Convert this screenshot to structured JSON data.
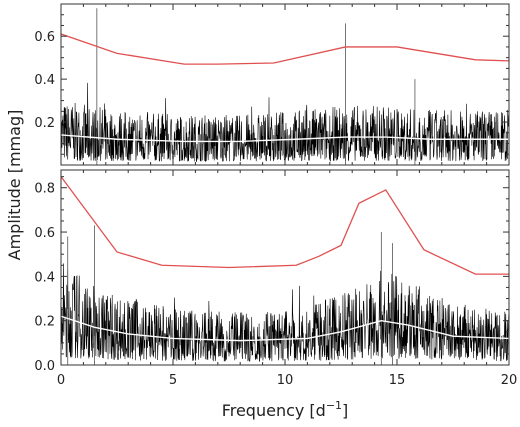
{
  "chart_data": [
    {
      "panel": "top",
      "type": "line",
      "xlim": [
        0,
        20
      ],
      "ylim": [
        0,
        0.75
      ],
      "yticks": [
        {
          "value": 0.2,
          "label": "0.2"
        },
        {
          "value": 0.4,
          "label": "0.4"
        },
        {
          "value": 0.6,
          "label": "0.6"
        }
      ],
      "series": [
        {
          "role": "spectrum",
          "color": "#000000",
          "noise_level": 0.1,
          "spikes": [
            [
              1.6,
              0.73
            ],
            [
              12.7,
              0.66
            ],
            [
              15.8,
              0.4
            ]
          ]
        },
        {
          "role": "smoothed-noise",
          "color": "#ffffff",
          "points": [
            [
              0,
              0.14
            ],
            [
              2.5,
              0.12
            ],
            [
              5.5,
              0.11
            ],
            [
              8,
              0.11
            ],
            [
              10.5,
              0.12
            ],
            [
              12.7,
              0.13
            ],
            [
              14.5,
              0.13
            ],
            [
              16.5,
              0.12
            ],
            [
              18.5,
              0.12
            ],
            [
              20,
              0.12
            ]
          ]
        },
        {
          "role": "threshold",
          "color": "#e05050",
          "points": [
            [
              0,
              0.61
            ],
            [
              2.5,
              0.52
            ],
            [
              5.5,
              0.47
            ],
            [
              7,
              0.47
            ],
            [
              9.5,
              0.475
            ],
            [
              12.7,
              0.55
            ],
            [
              15,
              0.55
            ],
            [
              18.5,
              0.49
            ],
            [
              20,
              0.485
            ]
          ]
        }
      ]
    },
    {
      "panel": "bottom",
      "type": "line",
      "xlim": [
        0,
        20
      ],
      "ylim": [
        0,
        0.88
      ],
      "yticks": [
        {
          "value": 0.0,
          "label": "0.0"
        },
        {
          "value": 0.2,
          "label": "0.2"
        },
        {
          "value": 0.4,
          "label": "0.4"
        },
        {
          "value": 0.6,
          "label": "0.6"
        },
        {
          "value": 0.8,
          "label": "0.8"
        }
      ],
      "series": [
        {
          "role": "spectrum",
          "color": "#000000",
          "noise_level": 0.1,
          "spikes": [
            [
              0.3,
              0.58
            ],
            [
              1.5,
              0.63
            ],
            [
              14.3,
              0.6
            ],
            [
              14.8,
              0.55
            ]
          ]
        },
        {
          "role": "smoothed-noise",
          "color": "#ffffff",
          "points": [
            [
              0,
              0.22
            ],
            [
              1.5,
              0.17
            ],
            [
              3,
              0.14
            ],
            [
              5,
              0.12
            ],
            [
              8,
              0.11
            ],
            [
              11,
              0.12
            ],
            [
              12.5,
              0.15
            ],
            [
              14.3,
              0.2
            ],
            [
              15.5,
              0.18
            ],
            [
              17.5,
              0.13
            ],
            [
              20,
              0.12
            ]
          ]
        },
        {
          "role": "threshold",
          "color": "#e05050",
          "points": [
            [
              0,
              0.85
            ],
            [
              2.5,
              0.51
            ],
            [
              4.5,
              0.45
            ],
            [
              7.5,
              0.44
            ],
            [
              10.5,
              0.45
            ],
            [
              11.5,
              0.49
            ],
            [
              12.5,
              0.54
            ],
            [
              13.3,
              0.73
            ],
            [
              14.5,
              0.79
            ],
            [
              16.2,
              0.52
            ],
            [
              18.5,
              0.41
            ],
            [
              20,
              0.41
            ]
          ]
        }
      ]
    }
  ],
  "axes": {
    "xticks": [
      {
        "value": 0,
        "label": "0"
      },
      {
        "value": 5,
        "label": "5"
      },
      {
        "value": 10,
        "label": "10"
      },
      {
        "value": 15,
        "label": "15"
      },
      {
        "value": 20,
        "label": "20"
      }
    ],
    "xlabel_main": "Frequency [d",
    "xlabel_sup": "−1",
    "xlabel_end": "]",
    "ylabel": "Amplitude [mmag]"
  },
  "colors": {
    "threshold": "#e05050",
    "smoothed": "#ffffff",
    "spectrum": "#000000",
    "frame": "#333333"
  }
}
